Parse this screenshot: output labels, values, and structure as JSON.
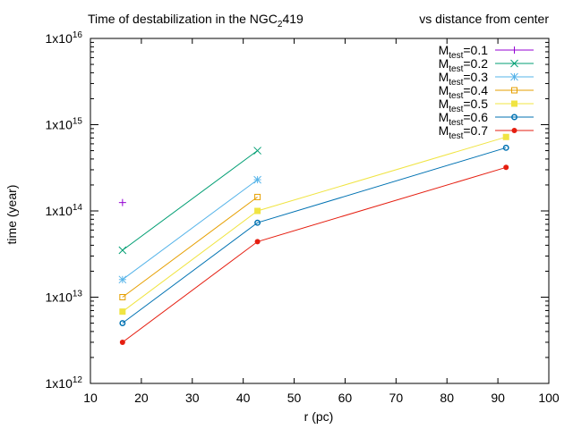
{
  "chart_data": {
    "type": "line",
    "title_left": "Time of destabilization in the NGC",
    "title_sub": "2",
    "title_suffix": "419",
    "title_right": "vs distance from center",
    "xlabel": "r (pc)",
    "ylabel": "time (year)",
    "xlim": [
      10,
      100
    ],
    "xticks": [
      10,
      20,
      30,
      40,
      50,
      60,
      70,
      80,
      90,
      100
    ],
    "ylim": [
      1000000000000.0,
      1e+16
    ],
    "yscale": "log",
    "yticks": [
      {
        "value": 1000000000000.0,
        "mantissa": "1x10",
        "exp": "12"
      },
      {
        "value": 10000000000000.0,
        "mantissa": "1x10",
        "exp": "13"
      },
      {
        "value": 100000000000000.0,
        "mantissa": "1x10",
        "exp": "14"
      },
      {
        "value": 1000000000000000.0,
        "mantissa": "1x10",
        "exp": "15"
      },
      {
        "value": 1e+16,
        "mantissa": "1x10",
        "exp": "16"
      }
    ],
    "grid": false,
    "legend_position": "top-right",
    "series": [
      {
        "name": "M",
        "sub": "test",
        "eq": "=0.1",
        "color": "#9400d3",
        "marker": "plus",
        "points": [
          [
            16.3,
            125000000000000.0
          ]
        ]
      },
      {
        "name": "M",
        "sub": "test",
        "eq": "=0.2",
        "color": "#009e73",
        "marker": "cross",
        "points": [
          [
            16.3,
            35000000000000.0
          ],
          [
            42.8,
            500000000000000.0
          ]
        ]
      },
      {
        "name": "M",
        "sub": "test",
        "eq": "=0.3",
        "color": "#56b4e9",
        "marker": "star",
        "points": [
          [
            16.3,
            16000000000000.0
          ],
          [
            42.8,
            230000000000000.0
          ]
        ]
      },
      {
        "name": "M",
        "sub": "test",
        "eq": "=0.4",
        "color": "#e69f00",
        "marker": "box",
        "points": [
          [
            16.3,
            10000000000000.0
          ],
          [
            42.8,
            145000000000000.0
          ]
        ]
      },
      {
        "name": "M",
        "sub": "test",
        "eq": "=0.5",
        "color": "#f0e442",
        "marker": "filledbox",
        "points": [
          [
            16.3,
            6800000000000.0
          ],
          [
            42.8,
            100000000000000.0
          ],
          [
            91.6,
            720000000000000.0
          ]
        ]
      },
      {
        "name": "M",
        "sub": "test",
        "eq": "=0.6",
        "color": "#0072b2",
        "marker": "circle",
        "points": [
          [
            16.3,
            5000000000000.0
          ],
          [
            42.8,
            73000000000000.0
          ],
          [
            91.6,
            540000000000000.0
          ]
        ]
      },
      {
        "name": "M",
        "sub": "test",
        "eq": "=0.7",
        "color": "#e51e10",
        "marker": "filledcircle",
        "points": [
          [
            16.3,
            3000000000000.0
          ],
          [
            42.8,
            44000000000000.0
          ],
          [
            91.6,
            320000000000000.0
          ]
        ]
      }
    ]
  }
}
